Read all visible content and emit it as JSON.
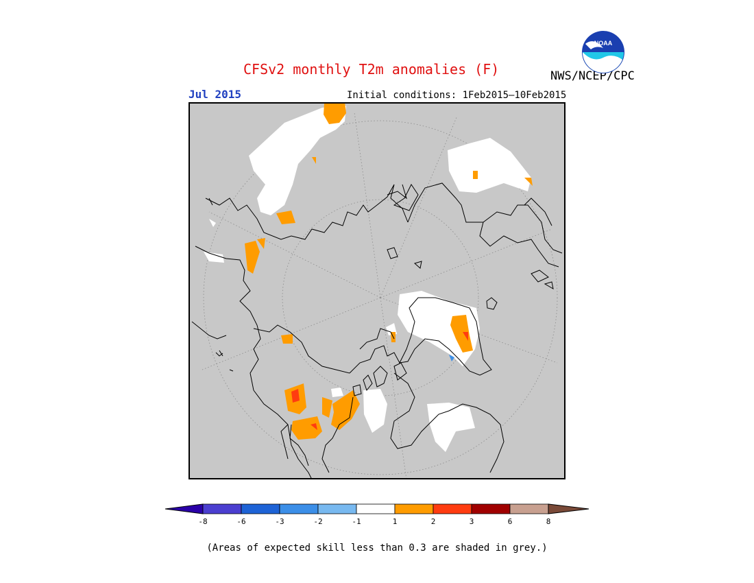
{
  "header": {
    "title": "CFSv2 monthly T2m anomalies (F)",
    "agency": "NWS/NCEP/CPC",
    "logo_text": "NOAA",
    "month": "Jul 2015",
    "initial_conditions": "Initial conditions: 1Feb2015—10Feb2015"
  },
  "map": {
    "projection": "north polar stereographic",
    "background_color": "#c8c8c8",
    "unit": "F"
  },
  "legend": {
    "colors": [
      "#2a00a8",
      "#4b3fd0",
      "#1e63d6",
      "#3c8fe8",
      "#78b9f0",
      "#ffffff",
      "#ff9c00",
      "#ff3c10",
      "#a00000",
      "#c8a090",
      "#7a4a38"
    ],
    "tick_labels": [
      "-8",
      "-6",
      "-3",
      "-2",
      "-1",
      "1",
      "2",
      "3",
      "6",
      "8"
    ]
  },
  "footnote": "(Areas of expected skill less than 0.3 are shaded in grey.)"
}
